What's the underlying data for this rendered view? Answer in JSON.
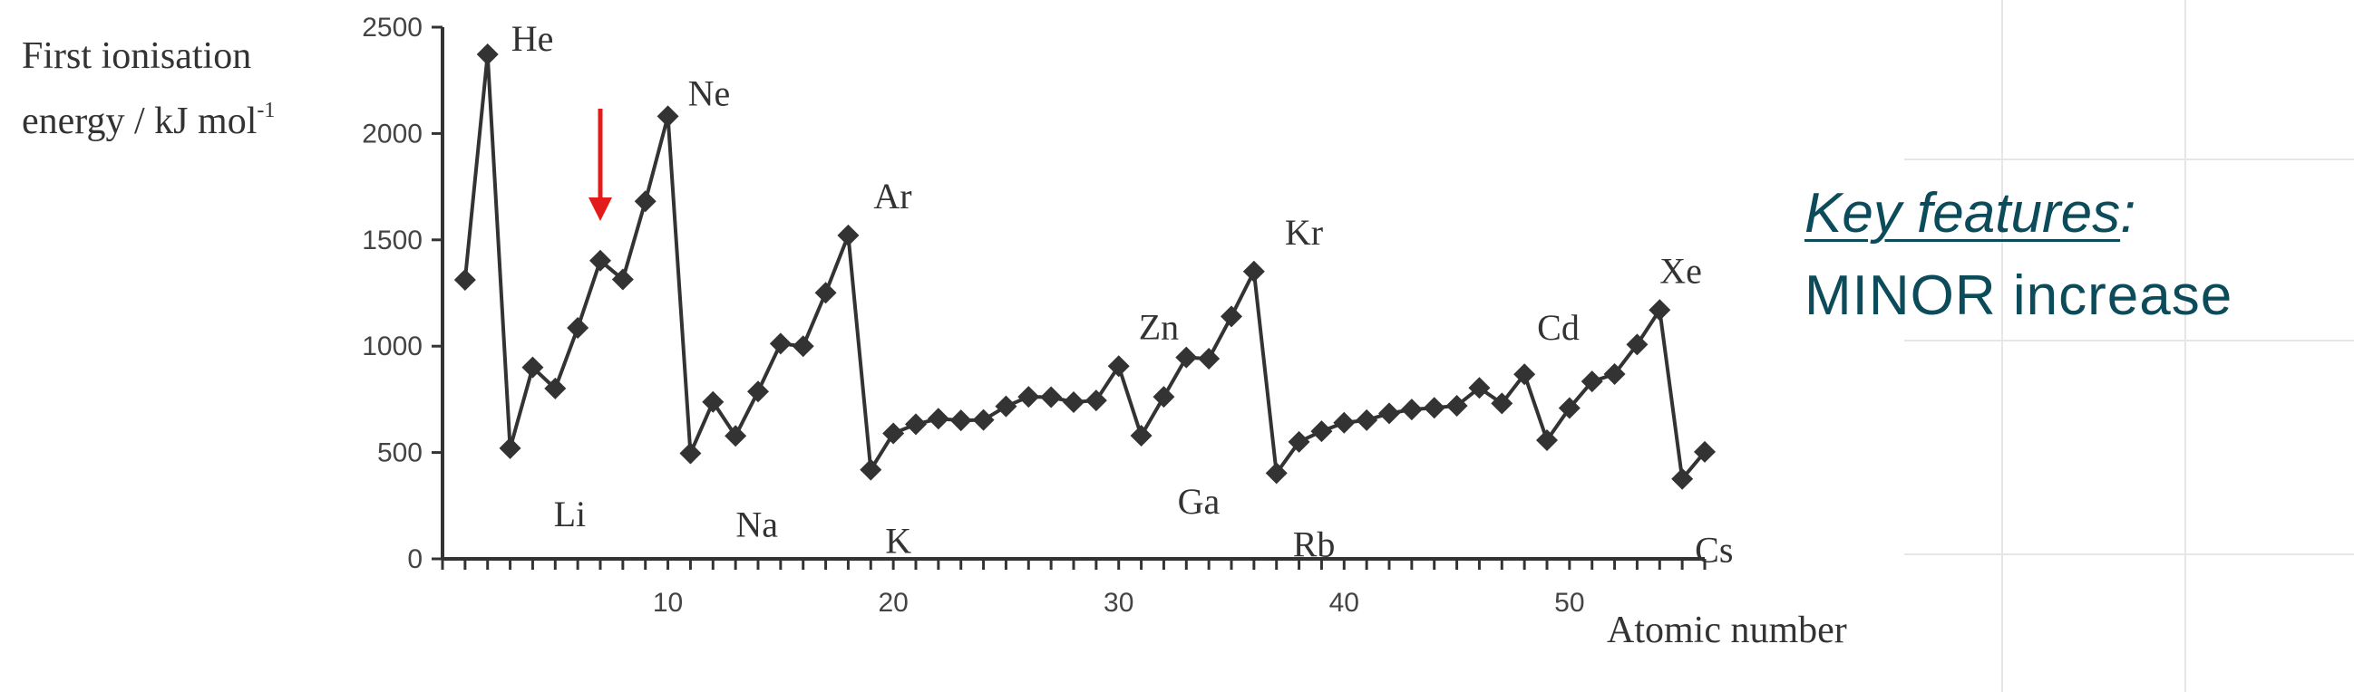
{
  "side_panel": {
    "key_features_label": "Key features",
    "colon": ":",
    "subtitle": "MINOR increase"
  },
  "colors": {
    "line": "#333333",
    "marker": "#333333",
    "arrow": "#e41b1b",
    "side_text": "#0c4b5a",
    "grid": "#e6e6e6"
  },
  "chart_data": {
    "type": "line",
    "ylabel_line1": "First ionisation",
    "ylabel_line2": "energy / kJ mol",
    "ylabel_sup": "-1",
    "xlabel": "Atomic number",
    "ylim": [
      0,
      2500
    ],
    "xlim": [
      0,
      56
    ],
    "yticks": [
      0,
      500,
      1000,
      1500,
      2000,
      2500
    ],
    "xticks": [
      10,
      20,
      30,
      40,
      50
    ],
    "grid": false,
    "marker": "diamond",
    "x": [
      1,
      2,
      3,
      4,
      5,
      6,
      7,
      8,
      9,
      10,
      11,
      12,
      13,
      14,
      15,
      16,
      17,
      18,
      19,
      20,
      21,
      22,
      23,
      24,
      25,
      26,
      27,
      28,
      29,
      30,
      31,
      32,
      33,
      34,
      35,
      36,
      37,
      38,
      39,
      40,
      41,
      42,
      43,
      44,
      45,
      46,
      47,
      48,
      49,
      50,
      51,
      52,
      53,
      54,
      55,
      56
    ],
    "values": [
      1312,
      2372,
      520,
      900,
      801,
      1086,
      1402,
      1314,
      1681,
      2081,
      496,
      738,
      578,
      787,
      1012,
      1000,
      1251,
      1521,
      419,
      590,
      633,
      659,
      651,
      653,
      717,
      762,
      760,
      737,
      745,
      906,
      579,
      762,
      947,
      941,
      1140,
      1351,
      403,
      550,
      600,
      640,
      652,
      684,
      702,
      710,
      720,
      804,
      731,
      868,
      558,
      709,
      834,
      869,
      1008,
      1170,
      376,
      503
    ],
    "annotations": [
      {
        "text": "He",
        "x": 2,
        "y": 2372
      },
      {
        "text": "Li",
        "x": 3,
        "y": 520
      },
      {
        "text": "Ne",
        "x": 10,
        "y": 2081
      },
      {
        "text": "Na",
        "x": 11,
        "y": 496
      },
      {
        "text": "Ar",
        "x": 18,
        "y": 1521
      },
      {
        "text": "K",
        "x": 19,
        "y": 419
      },
      {
        "text": "Zn",
        "x": 30,
        "y": 906
      },
      {
        "text": "Ga",
        "x": 31,
        "y": 579
      },
      {
        "text": "Kr",
        "x": 36,
        "y": 1351
      },
      {
        "text": "Rb",
        "x": 37,
        "y": 403
      },
      {
        "text": "Cd",
        "x": 48,
        "y": 868
      },
      {
        "text": "Xe",
        "x": 54,
        "y": 1170
      },
      {
        "text": "Cs",
        "x": 55,
        "y": 376
      }
    ],
    "highlight_arrow": {
      "x": 7,
      "points_to": "down"
    }
  }
}
